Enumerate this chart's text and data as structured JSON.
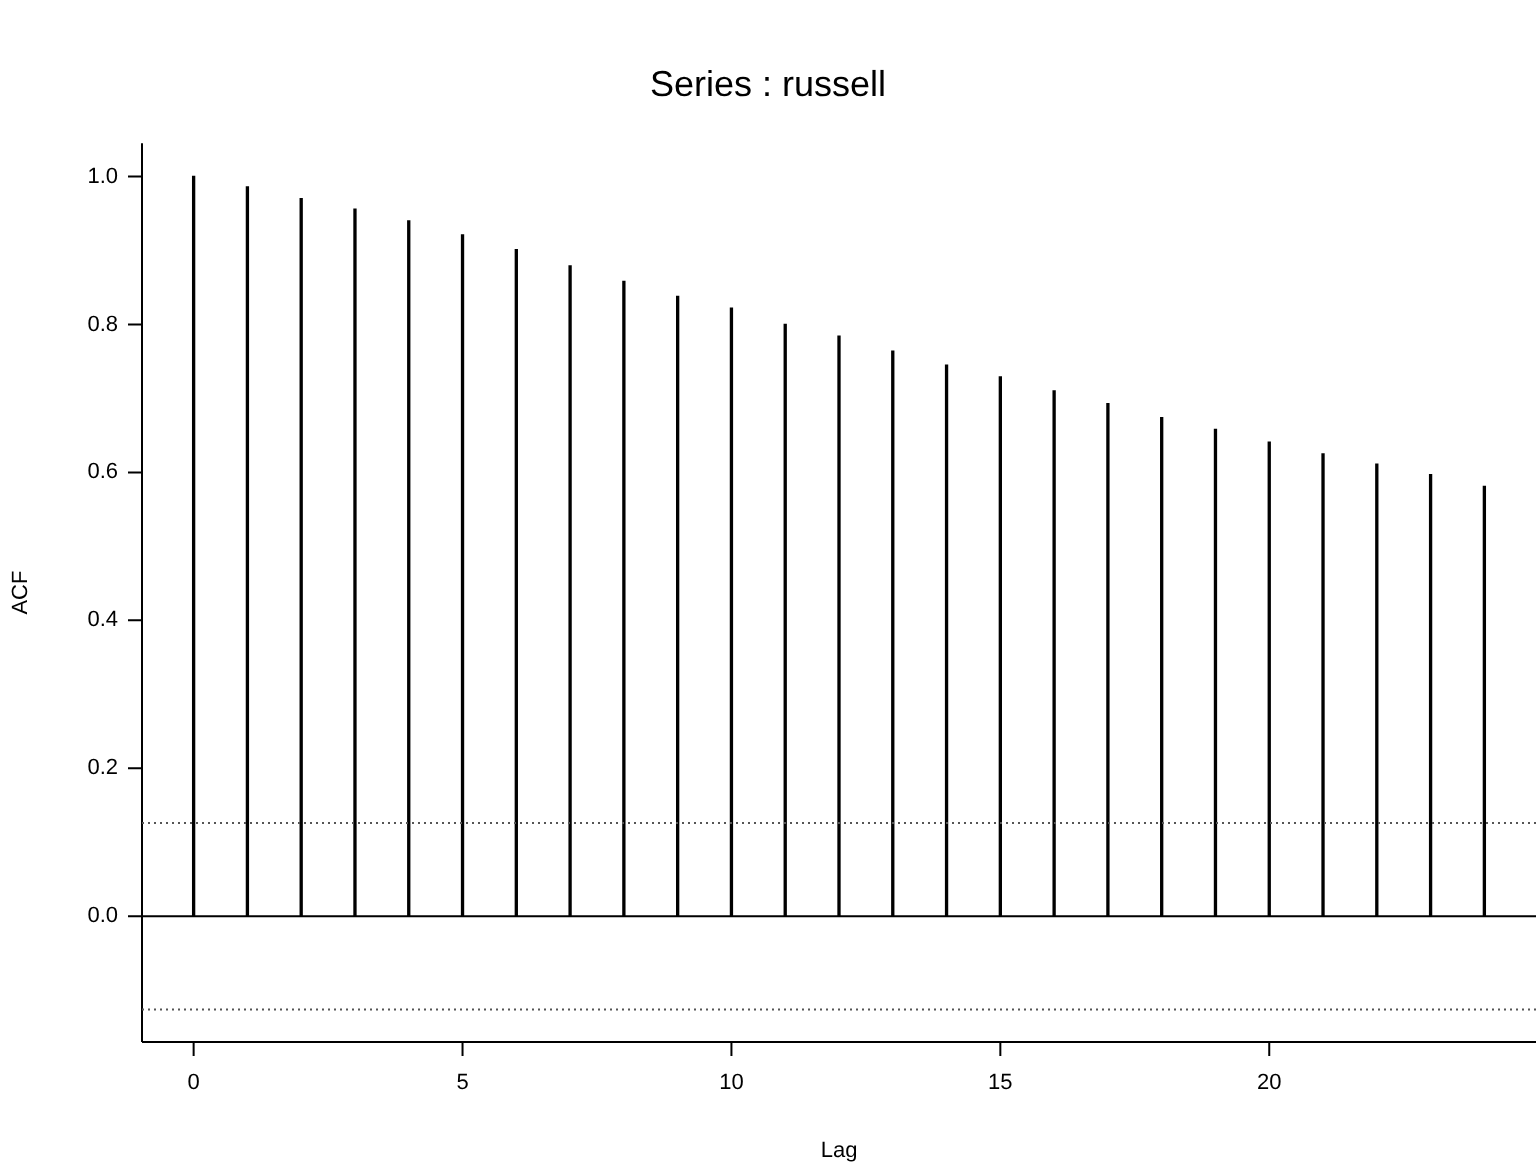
{
  "chart_data": {
    "type": "bar",
    "title": "Series : russell",
    "xlabel": "Lag",
    "ylabel": "ACF",
    "x": [
      0,
      1,
      2,
      3,
      4,
      5,
      6,
      7,
      8,
      9,
      10,
      11,
      12,
      13,
      14,
      15,
      16,
      17,
      18,
      19,
      20,
      21,
      22,
      23,
      24
    ],
    "values": [
      1.0,
      0.986,
      0.97,
      0.956,
      0.94,
      0.921,
      0.901,
      0.879,
      0.858,
      0.838,
      0.822,
      0.8,
      0.784,
      0.764,
      0.745,
      0.729,
      0.71,
      0.693,
      0.674,
      0.658,
      0.641,
      0.625,
      0.611,
      0.597,
      0.581
    ],
    "color": "#000000",
    "xlim": [
      -0.96,
      24.96
    ],
    "xticks": [
      0,
      5,
      10,
      15,
      20
    ],
    "ylim": [
      -0.17,
      1.045
    ],
    "yticks": [
      {
        "value": 0,
        "label": "0.0"
      },
      {
        "value": 0.2,
        "label": "0.2"
      },
      {
        "value": 0.4,
        "label": "0.4"
      },
      {
        "value": 0.6,
        "label": "0.6"
      },
      {
        "value": 0.8,
        "label": "0.8"
      },
      {
        "value": 1,
        "label": "1.0"
      }
    ],
    "ref_lines": [
      {
        "axis": "y",
        "value": 0,
        "color": "#000000",
        "line_style": "solid"
      },
      {
        "axis": "y",
        "value": 0.126,
        "color": "#555555",
        "line_style": "dotted"
      },
      {
        "axis": "y",
        "value": -0.126,
        "color": "#555555",
        "line_style": "dotted"
      }
    ],
    "grid": false,
    "legend": false
  }
}
